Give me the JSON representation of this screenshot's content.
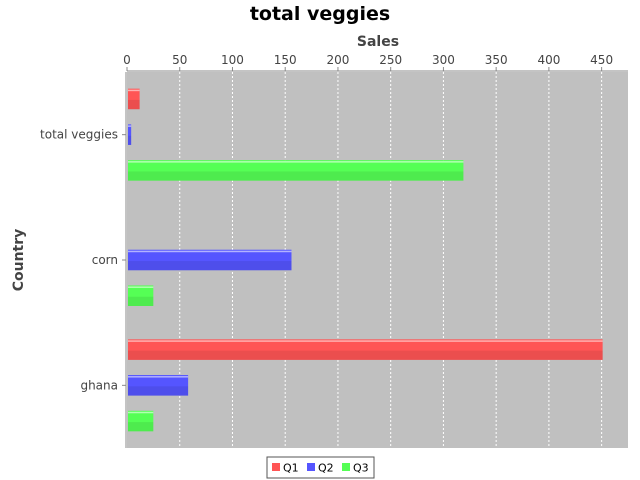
{
  "chart_data": {
    "type": "bar",
    "orientation": "horizontal",
    "title": "total veggies",
    "xlabel": "Sales",
    "ylabel": "Country",
    "categories": [
      "total veggies",
      "corn",
      "ghana"
    ],
    "series": [
      {
        "name": "Q1",
        "values": [
          11,
          0,
          450
        ],
        "color": "#ff5555"
      },
      {
        "name": "Q2",
        "values": [
          3,
          155,
          57
        ],
        "color": "#5555ff"
      },
      {
        "name": "Q3",
        "values": [
          318,
          24,
          24
        ],
        "color": "#55ff55"
      }
    ],
    "xlim": [
      0,
      475
    ],
    "xticks": [
      0,
      50,
      100,
      150,
      200,
      250,
      300,
      350,
      400,
      450
    ],
    "x_axis_position": "top",
    "grid": true,
    "legend_position": "bottom",
    "plot_background": "#c0c0c0"
  }
}
